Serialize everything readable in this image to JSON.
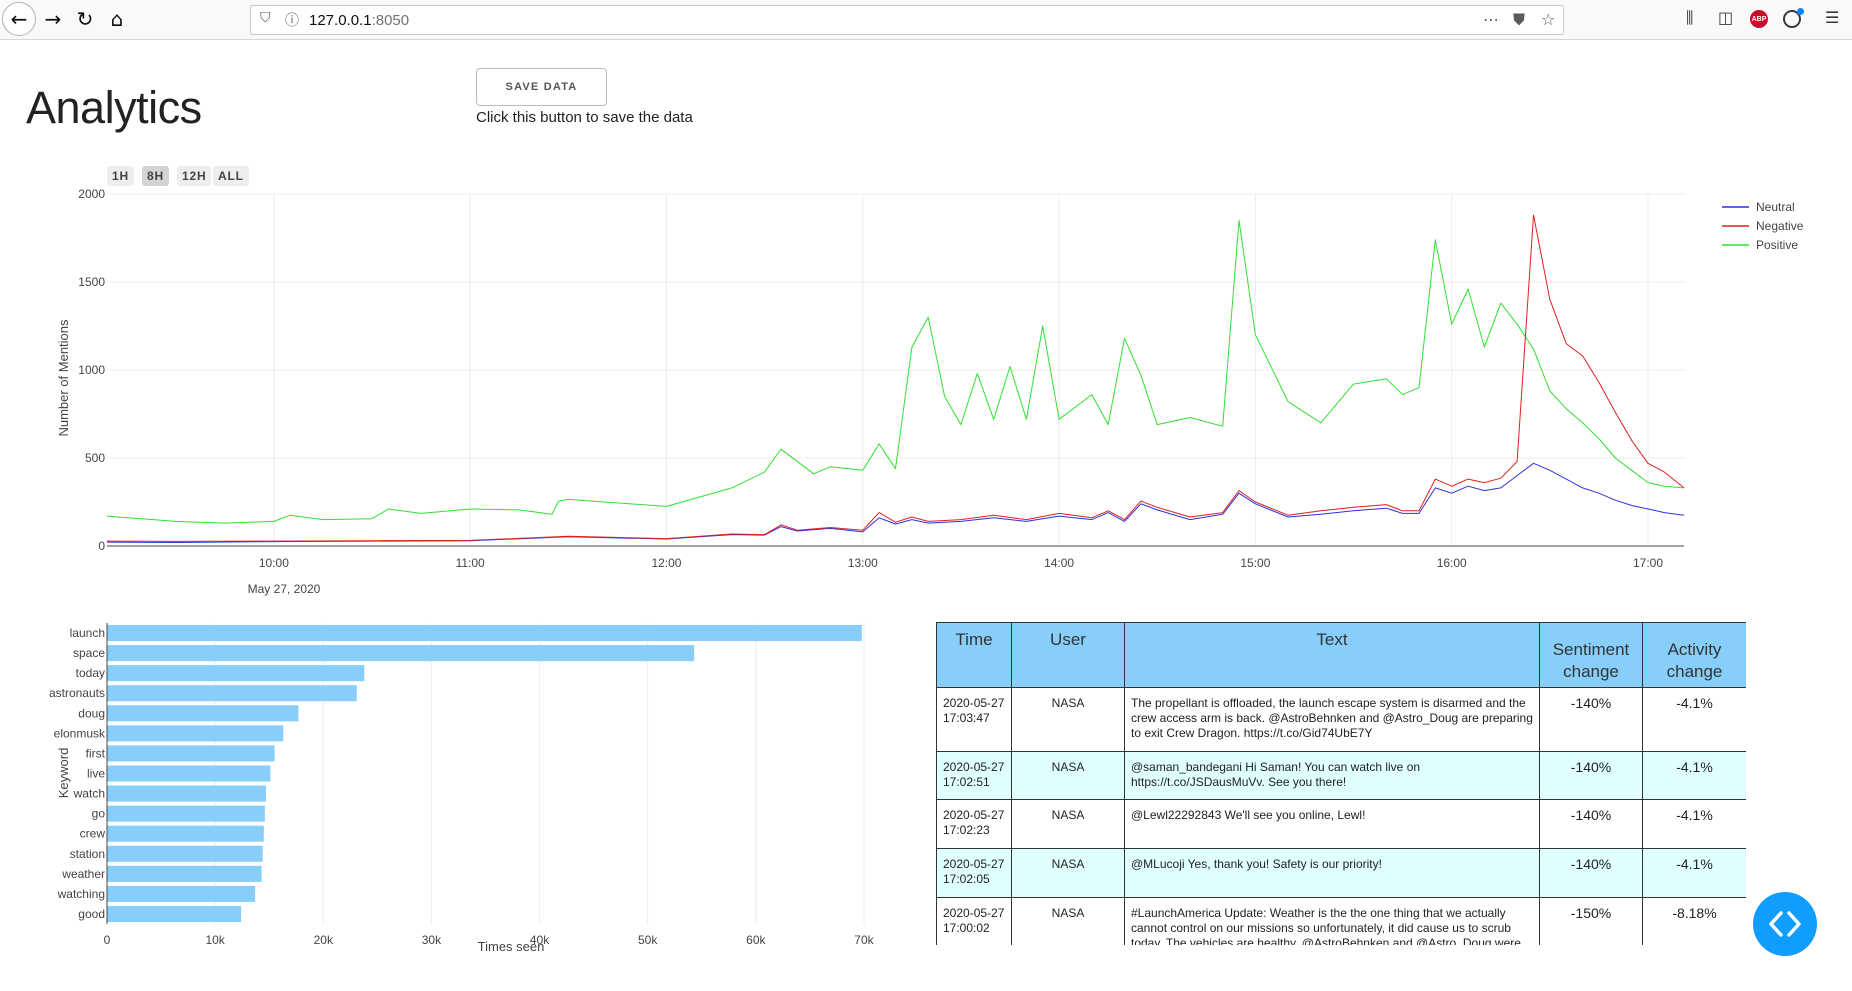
{
  "browser": {
    "url_host": "127.0.0.1",
    "url_port": ":8050"
  },
  "page": {
    "title": "Analytics",
    "save_button": "SAVE DATA",
    "save_help": "Click this button to save the data"
  },
  "range_selector": [
    "1H",
    "8H",
    "12H",
    "ALL"
  ],
  "chart_data": [
    {
      "type": "line",
      "title": "",
      "xlabel": "",
      "ylabel": "Number of Mentions",
      "x_ticks": [
        "10:00",
        "11:00",
        "12:00",
        "13:00",
        "14:00",
        "15:00",
        "16:00",
        "17:00"
      ],
      "x_date_label": "May 27, 2020",
      "xlim": [
        "2020-05-27 09:09",
        "2020-05-27 17:11"
      ],
      "ylim": [
        0,
        2000
      ],
      "y_ticks": [
        0,
        500,
        1000,
        1500,
        2000
      ],
      "grid": true,
      "legend": "top-right",
      "series": [
        {
          "name": "Neutral",
          "color": "#3030e0",
          "points": [
            [
              "09:09",
              22
            ],
            [
              "09:30",
              20
            ],
            [
              "10:00",
              25
            ],
            [
              "10:30",
              28
            ],
            [
              "11:00",
              30
            ],
            [
              "11:30",
              52
            ],
            [
              "12:00",
              40
            ],
            [
              "12:20",
              65
            ],
            [
              "12:30",
              62
            ],
            [
              "12:35",
              110
            ],
            [
              "12:40",
              85
            ],
            [
              "12:50",
              100
            ],
            [
              "13:00",
              80
            ],
            [
              "13:05",
              160
            ],
            [
              "13:10",
              125
            ],
            [
              "13:15",
              150
            ],
            [
              "13:20",
              130
            ],
            [
              "13:30",
              140
            ],
            [
              "13:40",
              160
            ],
            [
              "13:50",
              140
            ],
            [
              "14:00",
              170
            ],
            [
              "14:10",
              150
            ],
            [
              "14:15",
              190
            ],
            [
              "14:20",
              140
            ],
            [
              "14:25",
              240
            ],
            [
              "14:30",
              205
            ],
            [
              "14:40",
              150
            ],
            [
              "14:50",
              180
            ],
            [
              "14:55",
              300
            ],
            [
              "15:00",
              240
            ],
            [
              "15:10",
              165
            ],
            [
              "15:20",
              180
            ],
            [
              "15:30",
              200
            ],
            [
              "15:40",
              215
            ],
            [
              "15:45",
              185
            ],
            [
              "15:50",
              185
            ],
            [
              "15:55",
              330
            ],
            [
              "16:00",
              300
            ],
            [
              "16:05",
              340
            ],
            [
              "16:10",
              315
            ],
            [
              "16:15",
              330
            ],
            [
              "16:20",
              400
            ],
            [
              "16:25",
              470
            ],
            [
              "16:30",
              430
            ],
            [
              "16:35",
              380
            ],
            [
              "16:40",
              330
            ],
            [
              "16:45",
              300
            ],
            [
              "16:50",
              260
            ],
            [
              "16:55",
              230
            ],
            [
              "17:00",
              210
            ],
            [
              "17:05",
              190
            ],
            [
              "17:11",
              175
            ]
          ]
        },
        {
          "name": "Negative",
          "color": "#e02020",
          "points": [
            [
              "09:09",
              28
            ],
            [
              "09:30",
              26
            ],
            [
              "10:00",
              28
            ],
            [
              "10:30",
              30
            ],
            [
              "11:00",
              32
            ],
            [
              "11:30",
              55
            ],
            [
              "12:00",
              42
            ],
            [
              "12:20",
              68
            ],
            [
              "12:30",
              65
            ],
            [
              "12:35",
              120
            ],
            [
              "12:40",
              90
            ],
            [
              "12:50",
              105
            ],
            [
              "13:00",
              90
            ],
            [
              "13:05",
              190
            ],
            [
              "13:10",
              135
            ],
            [
              "13:15",
              165
            ],
            [
              "13:20",
              140
            ],
            [
              "13:30",
              150
            ],
            [
              "13:40",
              175
            ],
            [
              "13:50",
              150
            ],
            [
              "14:00",
              185
            ],
            [
              "14:10",
              160
            ],
            [
              "14:15",
              200
            ],
            [
              "14:20",
              150
            ],
            [
              "14:25",
              255
            ],
            [
              "14:30",
              220
            ],
            [
              "14:40",
              165
            ],
            [
              "14:50",
              190
            ],
            [
              "14:55",
              315
            ],
            [
              "15:00",
              250
            ],
            [
              "15:10",
              175
            ],
            [
              "15:20",
              200
            ],
            [
              "15:30",
              220
            ],
            [
              "15:40",
              235
            ],
            [
              "15:45",
              200
            ],
            [
              "15:50",
              200
            ],
            [
              "15:55",
              380
            ],
            [
              "16:00",
              340
            ],
            [
              "16:05",
              380
            ],
            [
              "16:10",
              360
            ],
            [
              "16:15",
              385
            ],
            [
              "16:20",
              480
            ],
            [
              "16:25",
              1880
            ],
            [
              "16:30",
              1400
            ],
            [
              "16:35",
              1150
            ],
            [
              "16:40",
              1080
            ],
            [
              "16:45",
              930
            ],
            [
              "16:50",
              760
            ],
            [
              "16:55",
              600
            ],
            [
              "17:00",
              470
            ],
            [
              "17:05",
              420
            ],
            [
              "17:11",
              330
            ]
          ]
        },
        {
          "name": "Positive",
          "color": "#30e030",
          "points": [
            [
              "09:09",
              170
            ],
            [
              "09:30",
              140
            ],
            [
              "09:45",
              130
            ],
            [
              "10:00",
              140
            ],
            [
              "10:05",
              175
            ],
            [
              "10:15",
              150
            ],
            [
              "10:30",
              155
            ],
            [
              "10:35",
              210
            ],
            [
              "10:45",
              185
            ],
            [
              "11:00",
              210
            ],
            [
              "11:15",
              205
            ],
            [
              "11:25",
              180
            ],
            [
              "11:27",
              255
            ],
            [
              "11:30",
              265
            ],
            [
              "12:00",
              225
            ],
            [
              "12:20",
              330
            ],
            [
              "12:30",
              420
            ],
            [
              "12:35",
              550
            ],
            [
              "12:45",
              410
            ],
            [
              "12:50",
              450
            ],
            [
              "13:00",
              430
            ],
            [
              "13:05",
              580
            ],
            [
              "13:10",
              440
            ],
            [
              "13:15",
              1130
            ],
            [
              "13:20",
              1300
            ],
            [
              "13:25",
              850
            ],
            [
              "13:30",
              690
            ],
            [
              "13:35",
              980
            ],
            [
              "13:40",
              720
            ],
            [
              "13:45",
              1020
            ],
            [
              "13:50",
              720
            ],
            [
              "13:55",
              1250
            ],
            [
              "14:00",
              720
            ],
            [
              "14:10",
              860
            ],
            [
              "14:15",
              690
            ],
            [
              "14:20",
              1180
            ],
            [
              "14:25",
              970
            ],
            [
              "14:30",
              690
            ],
            [
              "14:40",
              730
            ],
            [
              "14:50",
              680
            ],
            [
              "14:55",
              1850
            ],
            [
              "15:00",
              1200
            ],
            [
              "15:10",
              820
            ],
            [
              "15:20",
              700
            ],
            [
              "15:30",
              920
            ],
            [
              "15:40",
              950
            ],
            [
              "15:45",
              860
            ],
            [
              "15:50",
              900
            ],
            [
              "15:55",
              1740
            ],
            [
              "16:00",
              1260
            ],
            [
              "16:05",
              1460
            ],
            [
              "16:10",
              1130
            ],
            [
              "16:15",
              1380
            ],
            [
              "16:20",
              1260
            ],
            [
              "16:25",
              1120
            ],
            [
              "16:30",
              880
            ],
            [
              "16:35",
              780
            ],
            [
              "16:40",
              700
            ],
            [
              "16:45",
              610
            ],
            [
              "16:50",
              500
            ],
            [
              "16:55",
              430
            ],
            [
              "17:00",
              360
            ],
            [
              "17:05",
              340
            ],
            [
              "17:11",
              330
            ]
          ]
        }
      ]
    },
    {
      "type": "bar",
      "orientation": "horizontal",
      "title": "",
      "xlabel": "Times seen",
      "ylabel": "Keyword",
      "color": "#87cefa",
      "xlim": [
        0,
        72500
      ],
      "x_ticks": [
        0,
        10000,
        20000,
        30000,
        40000,
        50000,
        60000,
        70000
      ],
      "x_tick_labels": [
        "0",
        "10k",
        "20k",
        "30k",
        "40k",
        "50k",
        "60k",
        "70k"
      ],
      "categories": [
        "launch",
        "space",
        "today",
        "astronauts",
        "doug",
        "elonmusk",
        "first",
        "live",
        "watch",
        "go",
        "crew",
        "station",
        "weather",
        "watching",
        "good"
      ],
      "values": [
        69800,
        54300,
        23800,
        23100,
        17700,
        16300,
        15500,
        15100,
        14700,
        14600,
        14500,
        14400,
        14300,
        13700,
        12400
      ]
    }
  ],
  "table": {
    "headers": [
      "Time",
      "User",
      "Text",
      "Sentiment change",
      "Activity change"
    ],
    "rows": [
      {
        "time": "2020-05-27 17:03:47",
        "user": "NASA",
        "text": "The propellant is offloaded, the launch escape system is disarmed and the crew access arm is back. @AstroBehnken and @Astro_Doug are preparing to exit Crew Dragon. https://t.co/Gid74UbE7Y",
        "sentiment": "-140%",
        "activity": "-4.1%"
      },
      {
        "time": "2020-05-27 17:02:51",
        "user": "NASA",
        "text": "@saman_bandegani Hi Saman! You can watch live on https://t.co/JSDausMuVv. See you there!",
        "sentiment": "-140%",
        "activity": "-4.1%"
      },
      {
        "time": "2020-05-27 17:02:23",
        "user": "NASA",
        "text": "@Lewl22292843 We'll see you online, Lewl!",
        "sentiment": "-140%",
        "activity": "-4.1%"
      },
      {
        "time": "2020-05-27 17:02:05",
        "user": "NASA",
        "text": "@MLucoji Yes, thank you! Safety is our priority!",
        "sentiment": "-140%",
        "activity": "-4.1%"
      },
      {
        "time": "2020-05-27 17:00:02",
        "user": "NASA",
        "text": "#LaunchAmerica Update: Weather is the the one thing that we actually cannot control on our missions so unfortunately, it did cause us to scrub today. The vehicles are healthy, @AstroBehnken  and @Astro_Doug were",
        "sentiment": "-150%",
        "activity": "-8.18%"
      }
    ]
  }
}
